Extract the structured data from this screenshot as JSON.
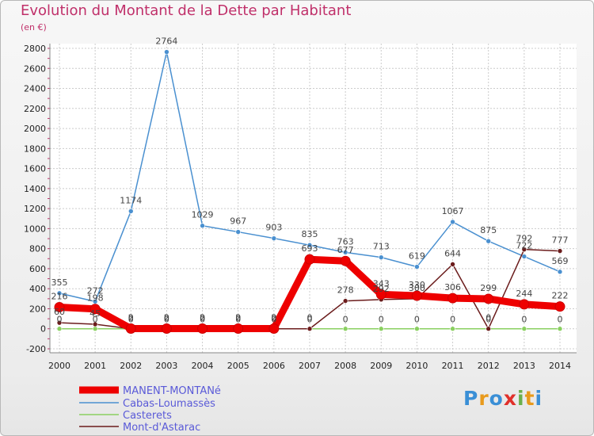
{
  "title": "Evolution du Montant de la Dette par Habitant",
  "unit": "(en €)",
  "logo": "Proxiti",
  "colors": {
    "title": "#c0306a",
    "grid": "#cccccc",
    "series": [
      "#ee0000",
      "#4a90d0",
      "#8ad060",
      "#6b1c1c"
    ]
  },
  "chart_data": {
    "type": "line",
    "title": "Evolution du Montant de la Dette par Habitant",
    "ylabel": "(en €)",
    "xlabel": "",
    "x": [
      "2000",
      "2001",
      "2002",
      "2003",
      "2004",
      "2005",
      "2006",
      "2007",
      "2008",
      "2009",
      "2010",
      "2011",
      "2012",
      "2013",
      "2014"
    ],
    "ylim": [
      -200,
      2800
    ],
    "yticks": [
      "-200",
      "0",
      "200",
      "400",
      "600",
      "800",
      "1000",
      "1200",
      "1400",
      "1600",
      "1800",
      "2000",
      "2200",
      "2400",
      "2600",
      "2800"
    ],
    "grid": true,
    "legend": "bottom-left",
    "series": [
      {
        "name": "MANENT-MONTANé",
        "values": [
          216,
          198,
          2,
          2,
          2,
          2,
          2,
          693,
          677,
          343,
          330,
          306,
          299,
          244,
          222
        ]
      },
      {
        "name": "Cabas-Loumassès",
        "values": [
          355,
          272,
          1174,
          2764,
          1029,
          967,
          903,
          835,
          763,
          713,
          619,
          1067,
          875,
          722,
          569
        ]
      },
      {
        "name": "Casterets",
        "values": [
          0,
          0,
          0,
          0,
          0,
          0,
          0,
          0,
          0,
          0,
          0,
          0,
          0,
          0,
          0
        ]
      },
      {
        "name": "Mont-d'Astarac",
        "values": [
          60,
          45,
          0,
          0,
          0,
          0,
          0,
          0,
          278,
          292,
          300,
          644,
          0,
          792,
          777
        ]
      }
    ]
  }
}
